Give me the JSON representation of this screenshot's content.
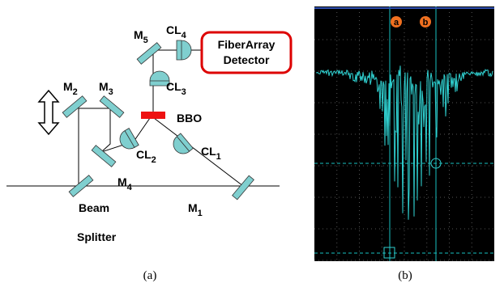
{
  "panel_a": {
    "labels": [
      {
        "text": "M",
        "sub": "5"
      },
      {
        "text": "CL",
        "sub": "4"
      },
      {
        "text": "CL",
        "sub": "3"
      },
      {
        "text": "M",
        "sub": "2"
      },
      {
        "text": "M",
        "sub": "3"
      },
      {
        "text": "CL",
        "sub": "2"
      },
      {
        "text": "CL",
        "sub": "1"
      },
      {
        "text": "M",
        "sub": "4"
      },
      {
        "text": "M",
        "sub": "1"
      }
    ],
    "bbo": "BBO",
    "detector": [
      "FiberArray",
      "Detector"
    ],
    "beam_splitter": [
      "Beam",
      "Splitter"
    ],
    "caption": "(a)"
  },
  "panel_b": {
    "markers": [
      "a",
      "b"
    ],
    "caption": "(b)"
  }
}
